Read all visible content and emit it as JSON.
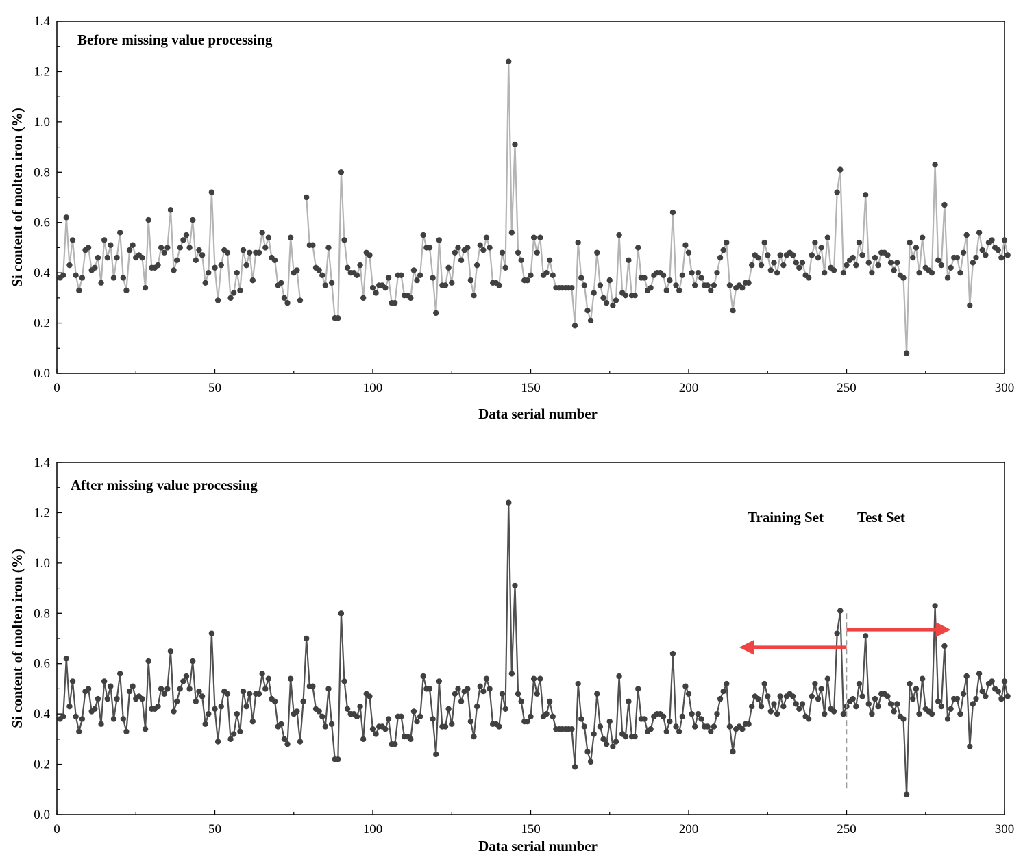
{
  "chart_data": [
    {
      "type": "line",
      "title": "Before missing value processing",
      "xlabel": "Data serial number",
      "ylabel": "Si content of molten iron (%)",
      "xlim": [
        0,
        300
      ],
      "ylim": [
        0.0,
        1.4
      ],
      "xticks": [
        0,
        50,
        100,
        150,
        200,
        250,
        300
      ],
      "yticks": [
        0.0,
        0.2,
        0.4,
        0.6,
        0.8,
        1.0,
        1.2,
        1.4
      ],
      "xtick_labels": [
        "0",
        "50",
        "100",
        "150",
        "200",
        "250",
        "300"
      ],
      "ytick_labels": [
        "0.0",
        "0.2",
        "0.4",
        "0.6",
        "0.8",
        "1.0",
        "1.2",
        "1.4"
      ],
      "line_color": "#b4b4b4",
      "marker_color": "#404040",
      "series": [
        {
          "name": "Si content",
          "x_start": 1,
          "values": [
            0.38,
            0.39,
            0.62,
            0.43,
            0.53,
            0.39,
            0.33,
            0.38,
            0.49,
            0.5,
            0.41,
            0.42,
            0.46,
            0.36,
            0.53,
            0.46,
            0.51,
            0.38,
            0.46,
            0.56,
            0.38,
            0.33,
            0.49,
            0.51,
            0.46,
            0.47,
            0.46,
            0.34,
            0.61,
            0.42,
            0.42,
            0.43,
            0.5,
            0.48,
            0.5,
            0.65,
            0.41,
            0.45,
            0.5,
            0.53,
            0.55,
            0.5,
            0.61,
            0.45,
            0.49,
            0.47,
            0.36,
            0.4,
            0.72,
            0.42,
            0.29,
            0.43,
            0.49,
            0.48,
            0.3,
            0.32,
            0.4,
            0.33,
            0.49,
            0.43,
            0.48,
            0.37,
            0.48,
            0.48,
            0.56,
            0.5,
            0.54,
            0.46,
            0.45,
            0.35,
            0.36,
            0.3,
            0.28,
            0.54,
            0.4,
            0.41,
            0.29,
            null,
            0.7,
            0.51,
            0.51,
            0.42,
            0.41,
            0.39,
            0.35,
            0.5,
            0.36,
            0.22,
            0.22,
            0.8,
            0.53,
            0.42,
            0.4,
            0.4,
            0.39,
            0.43,
            0.3,
            0.48,
            0.47,
            0.34,
            0.32,
            0.35,
            0.35,
            0.34,
            0.38,
            0.28,
            0.28,
            0.39,
            0.39,
            0.31,
            0.31,
            0.3,
            0.41,
            0.37,
            0.39,
            0.55,
            0.5,
            0.5,
            0.38,
            0.24,
            0.53,
            0.35,
            0.35,
            0.42,
            0.36,
            0.48,
            0.5,
            0.45,
            0.49,
            0.5,
            0.37,
            0.31,
            0.43,
            0.51,
            0.49,
            0.54,
            0.5,
            0.36,
            0.36,
            0.35,
            0.48,
            0.42,
            1.24,
            0.56,
            0.91,
            0.48,
            0.45,
            0.37,
            0.37,
            0.39,
            0.54,
            0.48,
            0.54,
            0.39,
            0.4,
            0.45,
            0.39,
            0.34,
            0.34,
            0.34,
            0.34,
            0.34,
            0.34,
            0.19,
            0.52,
            0.38,
            0.35,
            0.25,
            0.21,
            0.32,
            0.48,
            0.35,
            0.3,
            0.28,
            0.37,
            0.27,
            0.29,
            0.55,
            0.32,
            0.31,
            0.45,
            0.31,
            0.31,
            0.5,
            0.38,
            0.38,
            0.33,
            0.34,
            0.39,
            0.4,
            0.4,
            0.39,
            0.33,
            0.37,
            0.64,
            0.35,
            0.33,
            0.39,
            0.51,
            0.48,
            0.4,
            0.35,
            0.4,
            0.38,
            0.35,
            0.35,
            0.33,
            0.35,
            0.4,
            0.46,
            0.49,
            0.52,
            0.35,
            0.25,
            0.34,
            0.35,
            0.34,
            0.36,
            0.36,
            0.43,
            0.47,
            0.46,
            0.43,
            0.52,
            0.47,
            0.41,
            0.44,
            0.4,
            0.47,
            0.43,
            0.47,
            0.48,
            0.47,
            0.44,
            0.42,
            0.44,
            0.39,
            0.38,
            0.47,
            0.52,
            0.46,
            0.5,
            0.4,
            0.54,
            0.42,
            0.41,
            0.72,
            0.81,
            0.4,
            0.43,
            0.45,
            0.46,
            0.43,
            0.52,
            0.47,
            0.71,
            0.44,
            0.4,
            0.46,
            0.43,
            0.48,
            0.48,
            0.47,
            0.44,
            0.41,
            0.44,
            0.39,
            0.38,
            0.08,
            0.52,
            0.46,
            0.5,
            0.4,
            0.54,
            0.42,
            0.41,
            0.4,
            0.83,
            0.45,
            0.43,
            0.67,
            0.38,
            0.42,
            0.46,
            0.46,
            0.4,
            0.48,
            0.55,
            0.27,
            0.44,
            0.46,
            0.56,
            0.49,
            0.47,
            0.52,
            0.53,
            0.5,
            0.49,
            0.46,
            0.53,
            0.47
          ]
        }
      ],
      "annotations": [
        "Before missing value processing"
      ]
    },
    {
      "type": "line",
      "title": "After missing value processing",
      "xlabel": "Data serial number",
      "ylabel": "Si content of molten iron (%)",
      "xlim": [
        0,
        300
      ],
      "ylim": [
        0.0,
        1.4
      ],
      "xticks": [
        0,
        50,
        100,
        150,
        200,
        250,
        300
      ],
      "yticks": [
        0.0,
        0.2,
        0.4,
        0.6,
        0.8,
        1.0,
        1.2,
        1.4
      ],
      "xtick_labels": [
        "0",
        "50",
        "100",
        "150",
        "200",
        "250",
        "300"
      ],
      "ytick_labels": [
        "0.0",
        "0.2",
        "0.4",
        "0.6",
        "0.8",
        "1.0",
        "1.2",
        "1.4"
      ],
      "line_color": "#505050",
      "marker_color": "#404040",
      "split_at": 250,
      "split_line_color": "#9a9a9a",
      "arrow_color": "#ef4444",
      "training_label": "Training Set",
      "test_label": "Test Set",
      "series": [
        {
          "name": "Si content",
          "x_start": 1,
          "values": [
            0.38,
            0.39,
            0.62,
            0.43,
            0.53,
            0.39,
            0.33,
            0.38,
            0.49,
            0.5,
            0.41,
            0.42,
            0.46,
            0.36,
            0.53,
            0.46,
            0.51,
            0.38,
            0.46,
            0.56,
            0.38,
            0.33,
            0.49,
            0.51,
            0.46,
            0.47,
            0.46,
            0.34,
            0.61,
            0.42,
            0.42,
            0.43,
            0.5,
            0.48,
            0.5,
            0.65,
            0.41,
            0.45,
            0.5,
            0.53,
            0.55,
            0.5,
            0.61,
            0.45,
            0.49,
            0.47,
            0.36,
            0.4,
            0.72,
            0.42,
            0.29,
            0.43,
            0.49,
            0.48,
            0.3,
            0.32,
            0.4,
            0.33,
            0.49,
            0.43,
            0.48,
            0.37,
            0.48,
            0.48,
            0.56,
            0.5,
            0.54,
            0.46,
            0.45,
            0.35,
            0.36,
            0.3,
            0.28,
            0.54,
            0.4,
            0.41,
            0.29,
            0.45,
            0.7,
            0.51,
            0.51,
            0.42,
            0.41,
            0.39,
            0.35,
            0.5,
            0.36,
            0.22,
            0.22,
            0.8,
            0.53,
            0.42,
            0.4,
            0.4,
            0.39,
            0.43,
            0.3,
            0.48,
            0.47,
            0.34,
            0.32,
            0.35,
            0.35,
            0.34,
            0.38,
            0.28,
            0.28,
            0.39,
            0.39,
            0.31,
            0.31,
            0.3,
            0.41,
            0.37,
            0.39,
            0.55,
            0.5,
            0.5,
            0.38,
            0.24,
            0.53,
            0.35,
            0.35,
            0.42,
            0.36,
            0.48,
            0.5,
            0.45,
            0.49,
            0.5,
            0.37,
            0.31,
            0.43,
            0.51,
            0.49,
            0.54,
            0.5,
            0.36,
            0.36,
            0.35,
            0.48,
            0.42,
            1.24,
            0.56,
            0.91,
            0.48,
            0.45,
            0.37,
            0.37,
            0.39,
            0.54,
            0.48,
            0.54,
            0.39,
            0.4,
            0.45,
            0.39,
            0.34,
            0.34,
            0.34,
            0.34,
            0.34,
            0.34,
            0.19,
            0.52,
            0.38,
            0.35,
            0.25,
            0.21,
            0.32,
            0.48,
            0.35,
            0.3,
            0.28,
            0.37,
            0.27,
            0.29,
            0.55,
            0.32,
            0.31,
            0.45,
            0.31,
            0.31,
            0.5,
            0.38,
            0.38,
            0.33,
            0.34,
            0.39,
            0.4,
            0.4,
            0.39,
            0.33,
            0.37,
            0.64,
            0.35,
            0.33,
            0.39,
            0.51,
            0.48,
            0.4,
            0.35,
            0.4,
            0.38,
            0.35,
            0.35,
            0.33,
            0.35,
            0.4,
            0.46,
            0.49,
            0.52,
            0.35,
            0.25,
            0.34,
            0.35,
            0.34,
            0.36,
            0.36,
            0.43,
            0.47,
            0.46,
            0.43,
            0.52,
            0.47,
            0.41,
            0.44,
            0.4,
            0.47,
            0.43,
            0.47,
            0.48,
            0.47,
            0.44,
            0.42,
            0.44,
            0.39,
            0.38,
            0.47,
            0.52,
            0.46,
            0.5,
            0.4,
            0.54,
            0.42,
            0.41,
            0.72,
            0.81,
            0.4,
            0.43,
            0.45,
            0.46,
            0.43,
            0.52,
            0.47,
            0.71,
            0.44,
            0.4,
            0.46,
            0.43,
            0.48,
            0.48,
            0.47,
            0.44,
            0.41,
            0.44,
            0.39,
            0.38,
            0.08,
            0.52,
            0.46,
            0.5,
            0.4,
            0.54,
            0.42,
            0.41,
            0.4,
            0.83,
            0.45,
            0.43,
            0.67,
            0.38,
            0.42,
            0.46,
            0.46,
            0.4,
            0.48,
            0.55,
            0.27,
            0.44,
            0.46,
            0.56,
            0.49,
            0.47,
            0.52,
            0.53,
            0.5,
            0.49,
            0.46,
            0.53,
            0.47
          ]
        }
      ],
      "annotations": [
        "After missing value processing",
        "Training Set",
        "Test Set"
      ]
    }
  ]
}
